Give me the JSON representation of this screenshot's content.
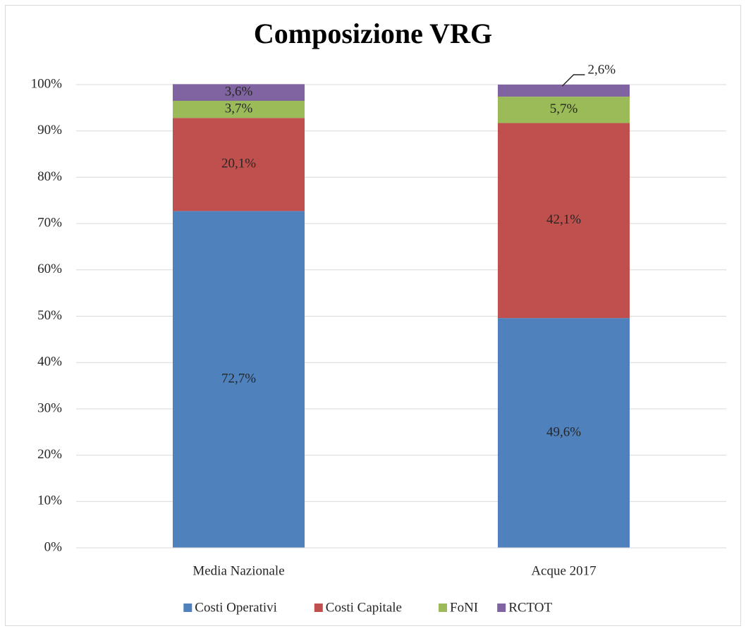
{
  "chart_data": {
    "type": "stacked_bar",
    "title": "Composizione VRG",
    "categories": [
      "Media Nazionale",
      "Acque 2017"
    ],
    "series": [
      {
        "name": "Costi Operativi",
        "color": "#4f81bd",
        "values": [
          72.7,
          49.6
        ],
        "value_labels": [
          "72,7%",
          "49,6%"
        ]
      },
      {
        "name": "Costi Capitale",
        "color": "#c0504d",
        "values": [
          20.1,
          42.1
        ],
        "value_labels": [
          "20,1%",
          "42,1%"
        ]
      },
      {
        "name": "FoNI",
        "color": "#9bbb59",
        "values": [
          3.7,
          5.7
        ],
        "value_labels": [
          "3,7%",
          "5,7%"
        ]
      },
      {
        "name": "RCTOT",
        "color": "#8064a2",
        "values": [
          3.6,
          2.6
        ],
        "value_labels": [
          "3,6%",
          "2,6%"
        ]
      }
    ],
    "ylim": [
      0,
      100
    ],
    "yticks": [
      {
        "value": 0,
        "label": "0%"
      },
      {
        "value": 10,
        "label": "10%"
      },
      {
        "value": 20,
        "label": "20%"
      },
      {
        "value": 30,
        "label": "30%"
      },
      {
        "value": 40,
        "label": "40%"
      },
      {
        "value": 50,
        "label": "50%"
      },
      {
        "value": 60,
        "label": "60%"
      },
      {
        "value": 70,
        "label": "70%"
      },
      {
        "value": 80,
        "label": "80%"
      },
      {
        "value": 90,
        "label": "90%"
      },
      {
        "value": 100,
        "label": "100%"
      }
    ],
    "grid": true,
    "legend": "bottom"
  }
}
